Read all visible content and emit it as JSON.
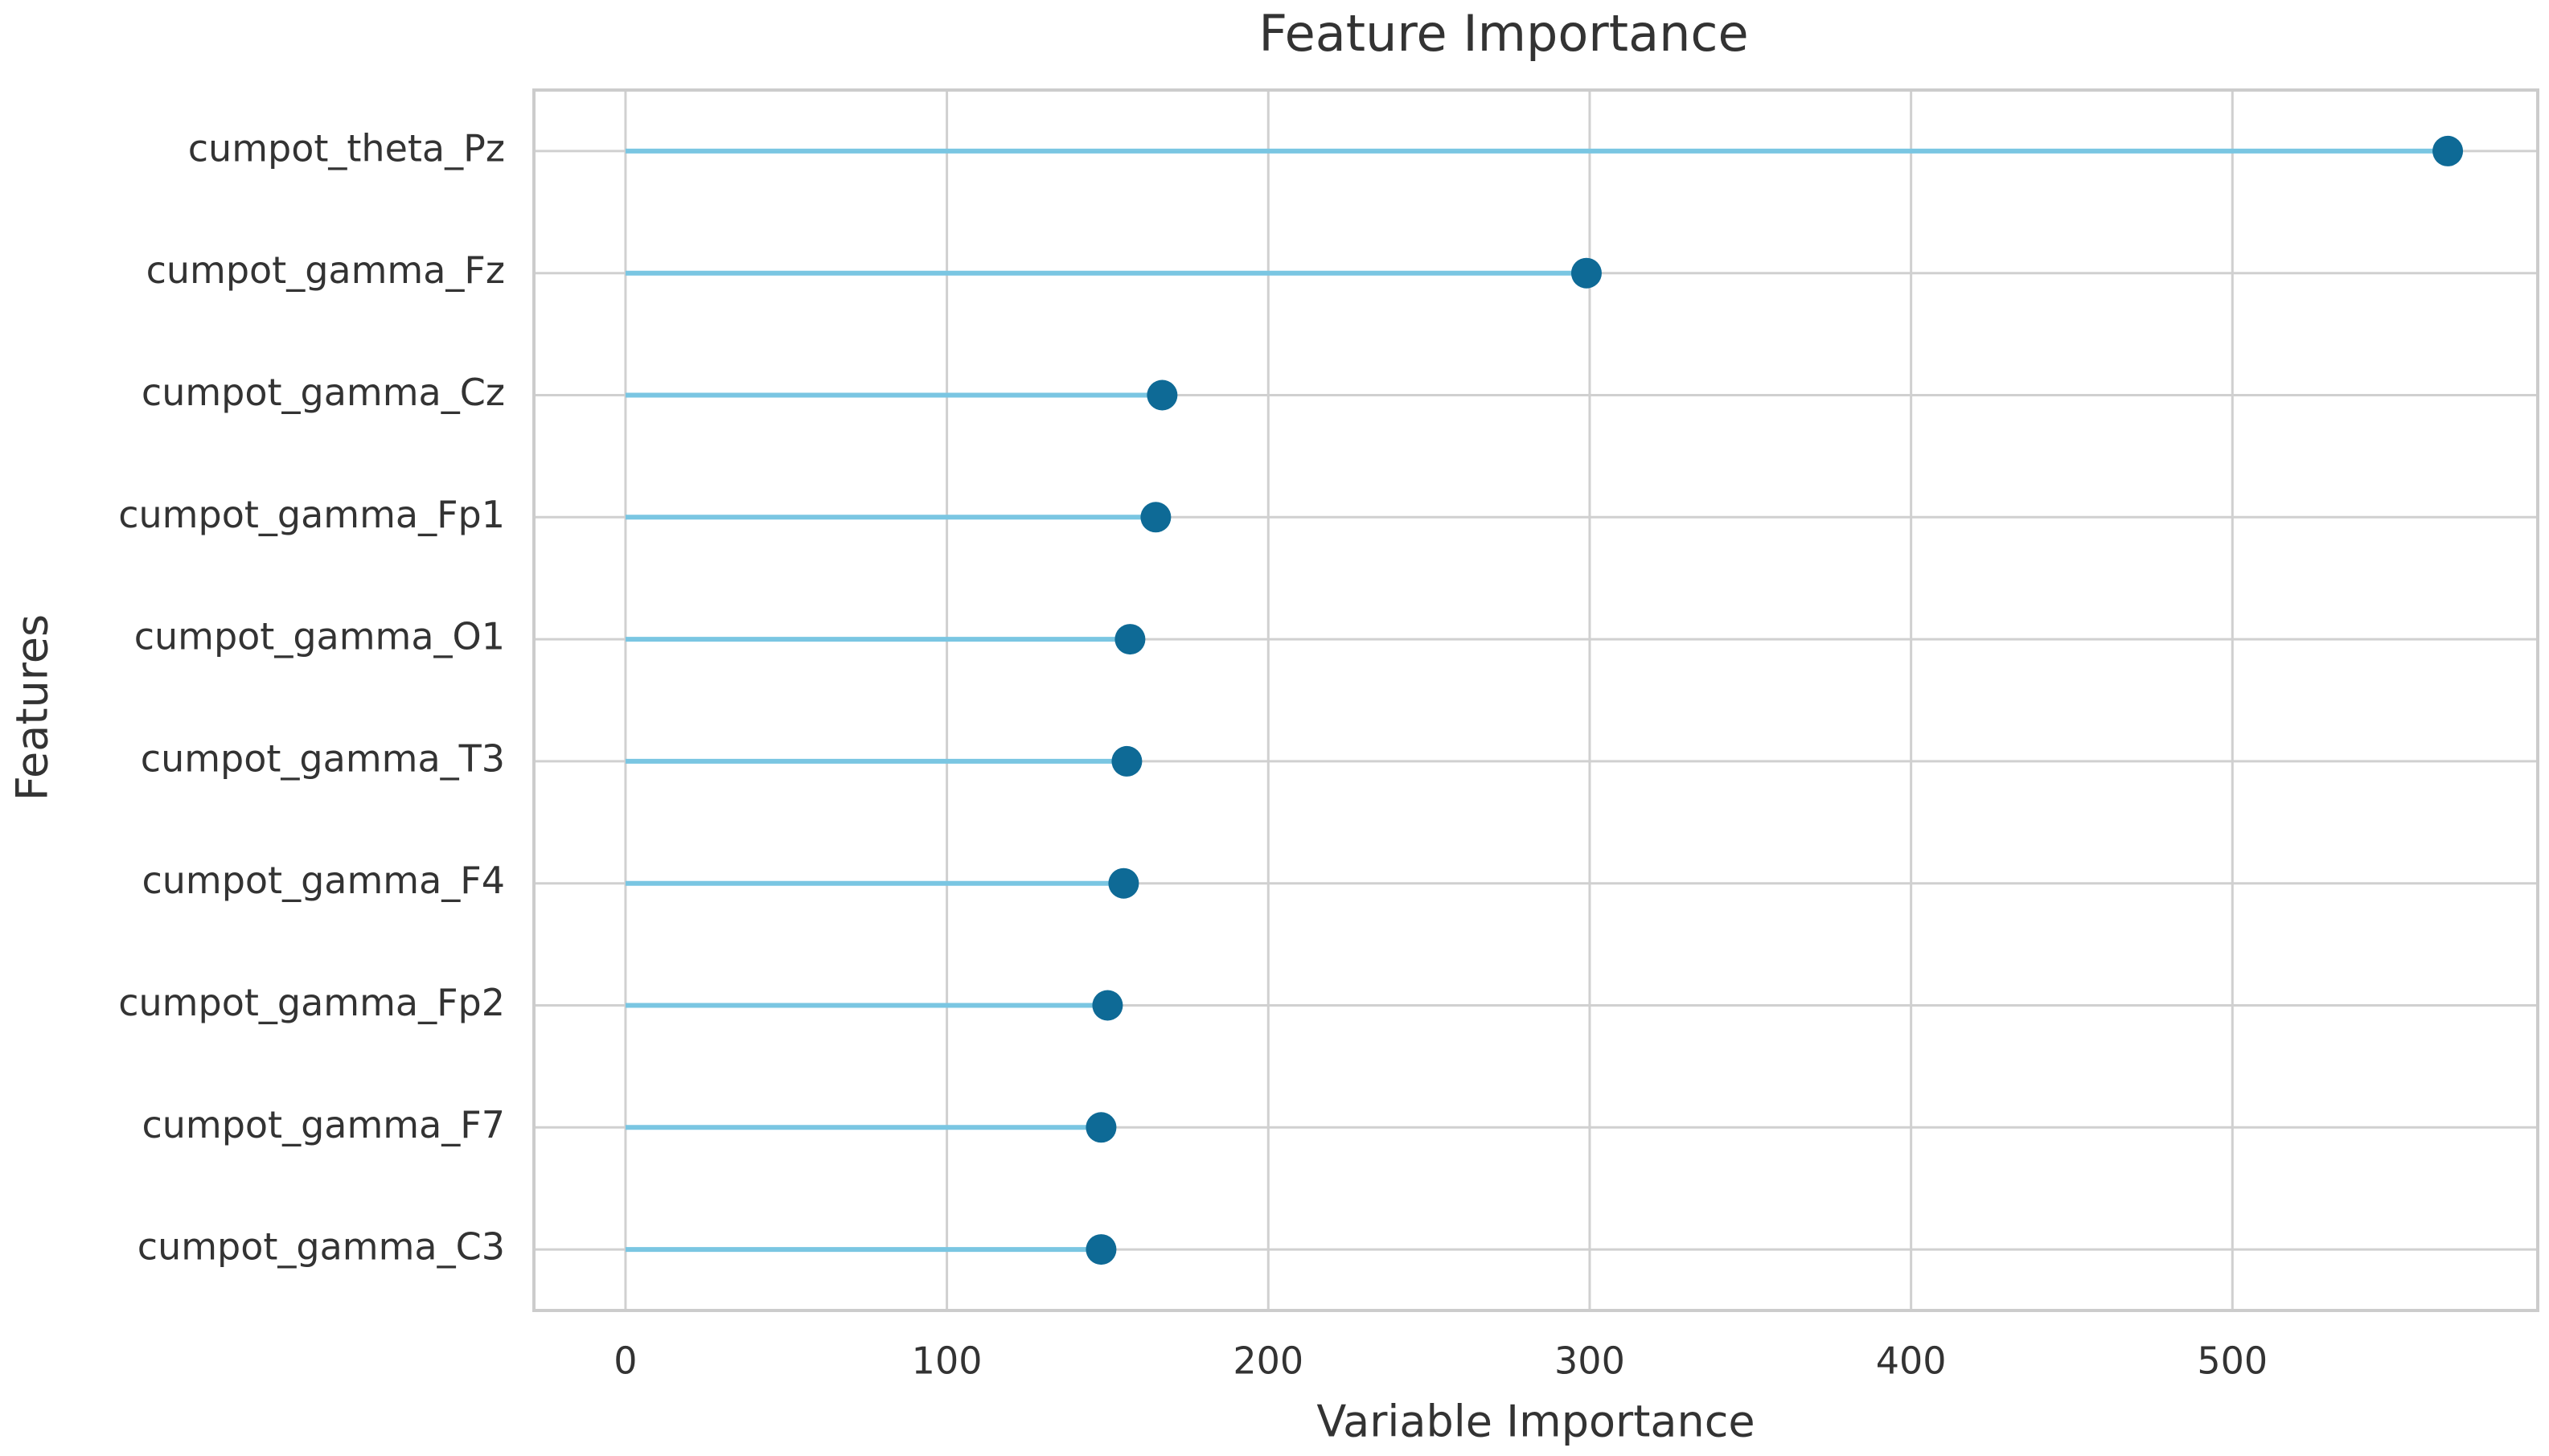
{
  "chart_data": {
    "type": "lollipop",
    "title": "Feature Importance",
    "x_label": "Variable Importance",
    "y_label": "Features",
    "categories": [
      "cumpot_theta_Pz",
      "cumpot_gamma_Fz",
      "cumpot_gamma_Cz",
      "cumpot_gamma_Fp1",
      "cumpot_gamma_O1",
      "cumpot_gamma_T3",
      "cumpot_gamma_F4",
      "cumpot_gamma_Fp2",
      "cumpot_gamma_F7",
      "cumpot_gamma_C3"
    ],
    "values": [
      567,
      299,
      167,
      165,
      157,
      156,
      155,
      150,
      148,
      148
    ],
    "color": "#0e6a96",
    "stem_color": "#7ac6e2",
    "xlim": [
      -28.5,
      595
    ],
    "xticks": [
      0,
      100,
      200,
      300,
      400,
      500
    ],
    "grid": true
  }
}
